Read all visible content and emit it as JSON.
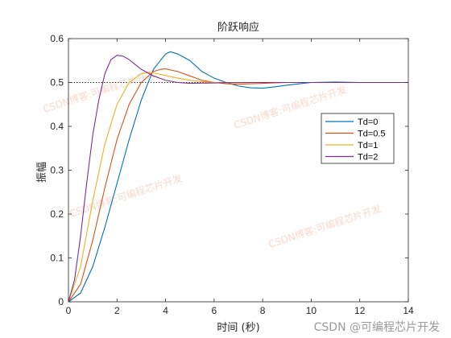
{
  "chart_data": {
    "type": "line",
    "title": "阶跃响应",
    "xlabel": "时间 (秒)",
    "ylabel": "振幅",
    "xlim": [
      0,
      14
    ],
    "ylim": [
      0,
      0.6
    ],
    "x_ticks": [
      "0",
      "2",
      "4",
      "6",
      "8",
      "10",
      "12",
      "14"
    ],
    "y_ticks": [
      "0",
      "0.1",
      "0.2",
      "0.3",
      "0.4",
      "0.5",
      "0.6"
    ],
    "steady_state": 0.5,
    "legend_position": "right",
    "grid": false,
    "series": [
      {
        "name": "Td=0",
        "color": "#0072BD",
        "x": [
          0,
          0.5,
          1,
          1.5,
          2,
          2.5,
          3,
          3.5,
          4,
          4.2,
          4.5,
          5,
          5.5,
          6,
          6.5,
          7,
          7.5,
          8,
          8.5,
          9,
          10,
          11,
          12,
          13,
          14
        ],
        "y": [
          0,
          0.02,
          0.08,
          0.17,
          0.27,
          0.37,
          0.46,
          0.53,
          0.565,
          0.57,
          0.565,
          0.55,
          0.525,
          0.51,
          0.5,
          0.492,
          0.488,
          0.487,
          0.49,
          0.494,
          0.5,
          0.501,
          0.5,
          0.5,
          0.5
        ]
      },
      {
        "name": "Td=0.5",
        "color": "#D95319",
        "x": [
          0,
          0.5,
          1,
          1.5,
          2,
          2.5,
          3,
          3.5,
          3.8,
          4,
          4.5,
          5,
          5.5,
          6,
          6.5,
          7,
          7.5,
          8,
          9,
          10,
          12,
          14
        ],
        "y": [
          0,
          0.04,
          0.14,
          0.26,
          0.37,
          0.45,
          0.5,
          0.525,
          0.53,
          0.531,
          0.525,
          0.515,
          0.505,
          0.5,
          0.497,
          0.496,
          0.497,
          0.498,
          0.5,
          0.5,
          0.5,
          0.5
        ]
      },
      {
        "name": "Td=1",
        "color": "#EDB120",
        "x": [
          0,
          0.5,
          1,
          1.5,
          2,
          2.5,
          3,
          3.3,
          3.5,
          4,
          4.5,
          5,
          5.5,
          6,
          7,
          8,
          10,
          14
        ],
        "y": [
          0,
          0.08,
          0.23,
          0.36,
          0.45,
          0.5,
          0.52,
          0.523,
          0.522,
          0.516,
          0.51,
          0.505,
          0.502,
          0.5,
          0.499,
          0.5,
          0.5,
          0.5
        ]
      },
      {
        "name": "Td=2",
        "color": "#7E2F8E",
        "x": [
          0,
          0.25,
          0.5,
          0.75,
          1,
          1.25,
          1.5,
          1.75,
          2,
          2.25,
          2.5,
          3,
          3.5,
          4,
          4.5,
          5,
          6,
          7,
          8,
          10,
          14
        ],
        "y": [
          0,
          0.05,
          0.15,
          0.27,
          0.38,
          0.46,
          0.52,
          0.552,
          0.562,
          0.56,
          0.552,
          0.53,
          0.515,
          0.505,
          0.5,
          0.498,
          0.499,
          0.5,
          0.5,
          0.5,
          0.5
        ]
      }
    ]
  },
  "watermark": {
    "text": "CSDN博客:可编程芯片开发",
    "credit": "CSDN @可编程芯片开发"
  }
}
